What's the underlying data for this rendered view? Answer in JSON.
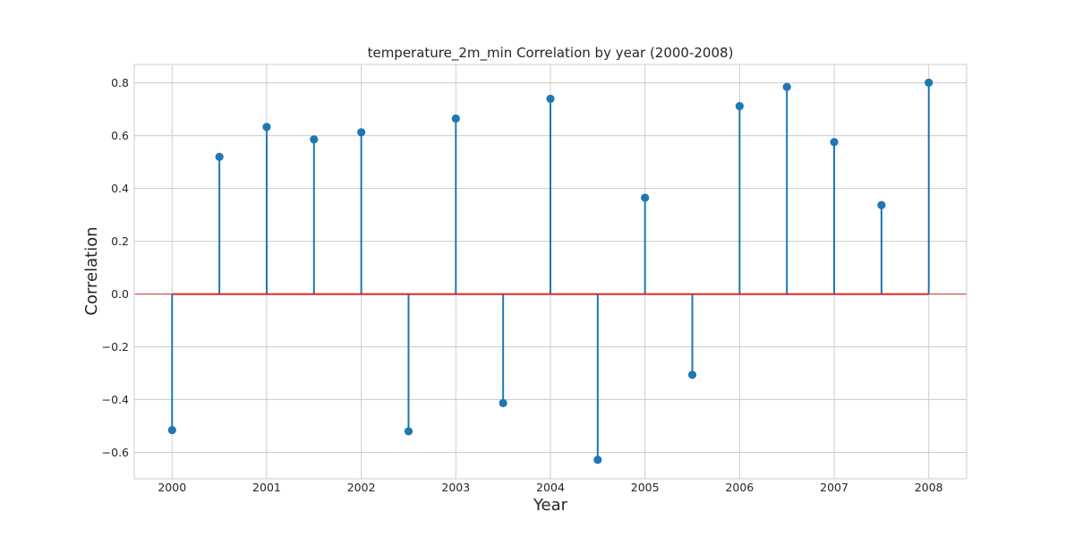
{
  "chart_data": {
    "type": "stem",
    "title": "temperature_2m_min Correlation by year (2000-2008)",
    "xlabel": "Year",
    "ylabel": "Correlation",
    "xlim": [
      1999.6,
      2008.4
    ],
    "ylim": [
      -0.7,
      0.87
    ],
    "xticks": [
      2000,
      2001,
      2002,
      2003,
      2004,
      2005,
      2006,
      2007,
      2008
    ],
    "yticks": [
      -0.6,
      -0.4,
      -0.2,
      0.0,
      0.2,
      0.4,
      0.6,
      0.8
    ],
    "ytick_labels": [
      "−0.6",
      "−0.4",
      "−0.2",
      "0.0",
      "0.2",
      "0.4",
      "0.6",
      "0.8"
    ],
    "grid": true,
    "baseline": 0,
    "colors": {
      "stem": "#1f77b4",
      "baseline": "#d62728",
      "grid": "#cccccc",
      "frame": "#cccccc"
    },
    "x": [
      2000,
      2000.5,
      2001,
      2001.5,
      2002,
      2002.5,
      2003,
      2003.5,
      2004,
      2004.5,
      2005,
      2005.5,
      2006,
      2006.5,
      2007,
      2007.5,
      2008
    ],
    "values": [
      -0.515,
      0.52,
      0.633,
      0.586,
      0.613,
      -0.52,
      0.665,
      -0.413,
      0.74,
      -0.628,
      0.365,
      -0.306,
      0.712,
      0.785,
      0.576,
      0.337,
      0.801
    ]
  }
}
